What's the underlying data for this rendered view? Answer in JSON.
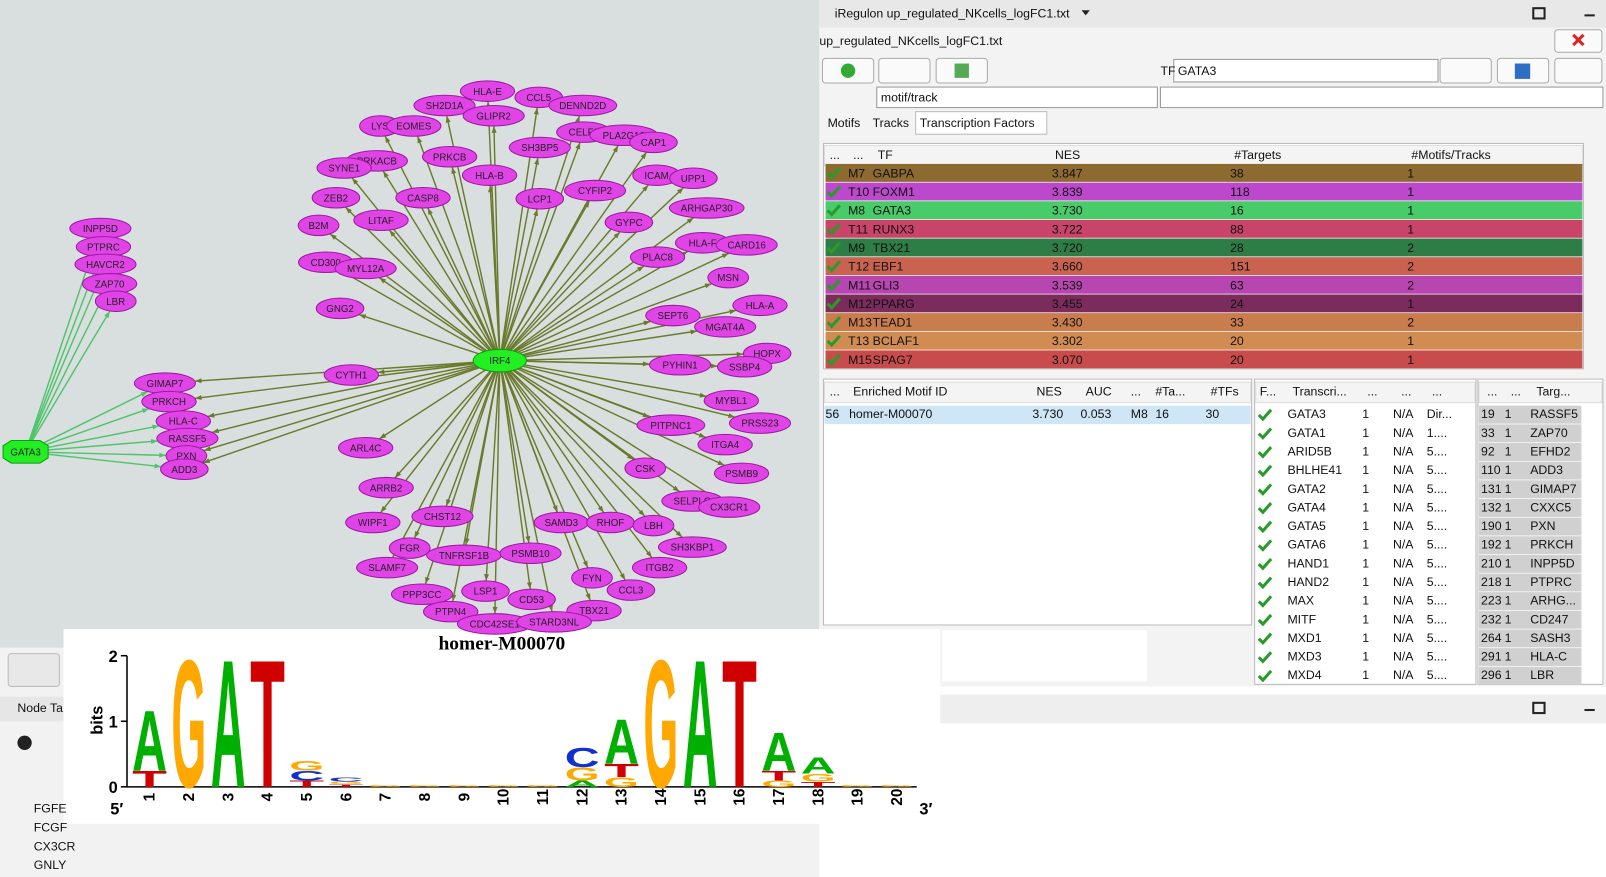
{
  "network": {
    "hub_main": "IRF4",
    "hub_side": "GATA3",
    "irf4_targets": [
      "HLA-E",
      "CCL5",
      "DENND2D",
      "SH2D1A",
      "GLIPR2",
      "LYS",
      "EOMES",
      "CELF2",
      "PLA2G16",
      "CAP1",
      "PRKACB",
      "PRKCB",
      "SH3BP5",
      "SYNE1",
      "HLA-B",
      "ICAM",
      "UPP1",
      "CASP8",
      "ZEB2",
      "CYFIP2",
      "LCP1",
      "ARHGAP30",
      "LITAF",
      "GYPC",
      "B2M",
      "HLA-F",
      "CARD16",
      "PLAC8",
      "CD300",
      "MYL12A",
      "MSN",
      "GNG2",
      "HLA-A",
      "SEPT6",
      "MGAT4A",
      "HOPX",
      "SSBP4",
      "PYHIN1",
      "CYTH1",
      "MYBL1",
      "PRSS23",
      "PITPNC1",
      "ITGA4",
      "ARL4C",
      "PSMB9",
      "CSK",
      "ARRB2",
      "SELPLG",
      "CX3CR1",
      "WIPF1",
      "CHST12",
      "SAMD3",
      "RHOF",
      "LBH",
      "SH3KBP1",
      "FGR",
      "TNFRSF1B",
      "PSMB10",
      "SLAMF7",
      "ITGB2",
      "FYN",
      "CCL3",
      "PPP3CC",
      "LSP1",
      "CD53",
      "TBX21",
      "PTPN4",
      "CDC42SE1",
      "STARD3NL"
    ],
    "shared_targets": [
      "GIMAP7",
      "PRKCH",
      "HLA-C",
      "RASSF5",
      "PXN",
      "ADD3"
    ],
    "gata3_targets": [
      "INPP5D",
      "PTPRC",
      "HAVCR2",
      "ZAP70",
      "LBR"
    ]
  },
  "panel": {
    "window_title": "iRegulon up_regulated_NKcells_logFC1.txt",
    "file_name": "up_regulated_NKcells_logFC1.txt",
    "tf_label": "TF",
    "tf_value": "GATA3",
    "mode": "motif/track",
    "tabs": [
      "Motifs",
      "Tracks",
      "Transcription Factors"
    ]
  },
  "tf_table": {
    "columns": [
      "...",
      "...",
      "TF",
      "NES",
      "#Targets",
      "#Motifs/Tracks"
    ],
    "rows": [
      [
        "M7",
        "GABPA",
        "3.847",
        "38",
        "1"
      ],
      [
        "T10",
        "FOXM1",
        "3.839",
        "118",
        "1"
      ],
      [
        "M8",
        "GATA3",
        "3.730",
        "16",
        "1"
      ],
      [
        "T11",
        "RUNX3",
        "3.722",
        "88",
        "1"
      ],
      [
        "M9",
        "TBX21",
        "3.720",
        "28",
        "2"
      ],
      [
        "T12",
        "EBF1",
        "3.660",
        "151",
        "2"
      ],
      [
        "M11",
        "GLI3",
        "3.539",
        "63",
        "2"
      ],
      [
        "M12",
        "PPARG",
        "3.455",
        "24",
        "1"
      ],
      [
        "M13",
        "TEAD1",
        "3.430",
        "33",
        "2"
      ],
      [
        "T13",
        "BCLAF1",
        "3.302",
        "20",
        "1"
      ],
      [
        "M15",
        "SPAG7",
        "3.070",
        "20",
        "1"
      ]
    ],
    "row_colors": [
      "#8c6a30",
      "#bc48cc",
      "#48cc6a",
      "#c84468",
      "#2f7d46",
      "#c9634f",
      "#b846b0",
      "#7b2c5c",
      "#c97c4c",
      "#d08c52",
      "#c84c4c"
    ]
  },
  "motif_table": {
    "columns": [
      "...",
      "Enriched Motif ID",
      "NES",
      "AUC",
      "...",
      "#Ta...",
      "#TFs"
    ],
    "rows": [
      [
        "56",
        "homer-M00070",
        "3.730",
        "0.053",
        "M8",
        "16",
        "30"
      ]
    ]
  },
  "factor_table": {
    "columns": [
      "F...",
      "Transcri...",
      "...",
      "...",
      "..."
    ],
    "rows": [
      [
        "GATA3",
        "1",
        "N/A",
        "Dir..."
      ],
      [
        "GATA1",
        "1",
        "N/A",
        "1...."
      ],
      [
        "ARID5B",
        "1",
        "N/A",
        "5...."
      ],
      [
        "BHLHE41",
        "1",
        "N/A",
        "5...."
      ],
      [
        "GATA2",
        "1",
        "N/A",
        "5...."
      ],
      [
        "GATA4",
        "1",
        "N/A",
        "5...."
      ],
      [
        "GATA5",
        "1",
        "N/A",
        "5...."
      ],
      [
        "GATA6",
        "1",
        "N/A",
        "5...."
      ],
      [
        "HAND1",
        "1",
        "N/A",
        "5...."
      ],
      [
        "HAND2",
        "1",
        "N/A",
        "5...."
      ],
      [
        "MAX",
        "1",
        "N/A",
        "5...."
      ],
      [
        "MITF",
        "1",
        "N/A",
        "5...."
      ],
      [
        "MXD1",
        "1",
        "N/A",
        "5...."
      ],
      [
        "MXD3",
        "1",
        "N/A",
        "5...."
      ],
      [
        "MXD4",
        "1",
        "N/A",
        "5...."
      ]
    ]
  },
  "target_table": {
    "columns": [
      "...",
      "...",
      "Targ..."
    ],
    "rows": [
      [
        "19",
        "1",
        "RASSF5"
      ],
      [
        "33",
        "1",
        "ZAP70"
      ],
      [
        "92",
        "1",
        "EFHD2"
      ],
      [
        "110",
        "1",
        "ADD3"
      ],
      [
        "131",
        "1",
        "GIMAP7"
      ],
      [
        "132",
        "1",
        "CXXC5"
      ],
      [
        "190",
        "1",
        "PXN"
      ],
      [
        "192",
        "1",
        "PRKCH"
      ],
      [
        "210",
        "1",
        "INPP5D"
      ],
      [
        "218",
        "1",
        "PTPRC"
      ],
      [
        "223",
        "1",
        "ARHG..."
      ],
      [
        "232",
        "1",
        "CD247"
      ],
      [
        "264",
        "1",
        "SASH3"
      ],
      [
        "291",
        "1",
        "HLA-C"
      ],
      [
        "296",
        "1",
        "LBR"
      ]
    ]
  },
  "node_table": {
    "tab": "Node Ta",
    "rows": [
      "FGFE",
      "FCGF",
      "CX3CR",
      "GNLY"
    ]
  },
  "logo": {
    "title": "homer-M00070",
    "ylabel": "bits",
    "ylim": [
      0,
      2
    ],
    "yticks": [
      0,
      1,
      2
    ],
    "positions": [
      1,
      2,
      3,
      4,
      5,
      6,
      7,
      8,
      9,
      10,
      11,
      12,
      13,
      14,
      15,
      16,
      17,
      18,
      19,
      20
    ],
    "five_prime": "5′",
    "three_prime": "3′",
    "colors": {
      "A": "#00b000",
      "C": "#1030d0",
      "G": "#ffa800",
      "T": "#d00000"
    },
    "stacks": [
      [
        {
          "letter": "T",
          "height": 0.25
        },
        {
          "letter": "A",
          "height": 0.95
        }
      ],
      [
        {
          "letter": "G",
          "height": 2.0
        }
      ],
      [
        {
          "letter": "A",
          "height": 2.0
        }
      ],
      [
        {
          "letter": "T",
          "height": 2.0
        }
      ],
      [
        {
          "letter": "T",
          "height": 0.1
        },
        {
          "letter": "C",
          "height": 0.15
        },
        {
          "letter": "G",
          "height": 0.15
        }
      ],
      [
        {
          "letter": "T",
          "height": 0.04
        },
        {
          "letter": "G",
          "height": 0.04
        },
        {
          "letter": "C",
          "height": 0.06
        }
      ],
      [
        {
          "letter": "G",
          "height": 0.03
        }
      ],
      [
        {
          "letter": "G",
          "height": 0.03
        }
      ],
      [
        {
          "letter": "G",
          "height": 0.03
        }
      ],
      [
        {
          "letter": "G",
          "height": 0.03
        }
      ],
      [
        {
          "letter": "G",
          "height": 0.03
        }
      ],
      [
        {
          "letter": "A",
          "height": 0.1
        },
        {
          "letter": "G",
          "height": 0.2
        },
        {
          "letter": "C",
          "height": 0.3
        }
      ],
      [
        {
          "letter": "G",
          "height": 0.15
        },
        {
          "letter": "T",
          "height": 0.2
        },
        {
          "letter": "A",
          "height": 0.7
        }
      ],
      [
        {
          "letter": "G",
          "height": 2.0
        }
      ],
      [
        {
          "letter": "A",
          "height": 2.0
        }
      ],
      [
        {
          "letter": "T",
          "height": 2.0
        }
      ],
      [
        {
          "letter": "G",
          "height": 0.1
        },
        {
          "letter": "T",
          "height": 0.15
        },
        {
          "letter": "A",
          "height": 0.6
        }
      ],
      [
        {
          "letter": "T",
          "height": 0.08
        },
        {
          "letter": "G",
          "height": 0.12
        },
        {
          "letter": "A",
          "height": 0.25
        }
      ],
      [
        {
          "letter": "G",
          "height": 0.03
        }
      ],
      [
        {
          "letter": "G",
          "height": 0.03
        }
      ]
    ]
  }
}
